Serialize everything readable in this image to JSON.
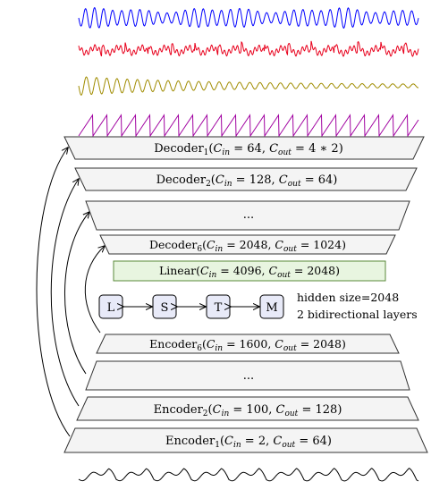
{
  "waves": {
    "top": [
      {
        "name": "blue-signal",
        "color": "#0000ff"
      },
      {
        "name": "red-signal",
        "color": "#e8001c"
      },
      {
        "name": "olive-signal",
        "color": "#a08c00"
      },
      {
        "name": "purple-signal",
        "color": "#a000a0"
      }
    ],
    "bottom": {
      "name": "input-signal",
      "color": "#000000"
    }
  },
  "decoders": [
    {
      "base": "Decoder",
      "sub": "1",
      "cin": "64",
      "cout": "4 ∗ 2"
    },
    {
      "base": "Decoder",
      "sub": "2",
      "cin": "128",
      "cout": "64"
    },
    {
      "base": "Decoder",
      "sub": "6",
      "cin": "2048",
      "cout": "1024"
    }
  ],
  "ellipsis": "...",
  "linear": {
    "base": "Linear",
    "cin": "4096",
    "cout": "2048",
    "fill": "#e8f5e0",
    "stroke": "#5a8a3a"
  },
  "lstm_nodes": [
    {
      "label": "L"
    },
    {
      "label": "S"
    },
    {
      "label": "T"
    },
    {
      "label": "M"
    }
  ],
  "lstm_note": [
    "hidden size=2048",
    "2 bidirectional layers"
  ],
  "encoders": [
    {
      "base": "Encoder",
      "sub": "6",
      "cin": "1600",
      "cout": "2048"
    },
    {
      "base": "Encoder",
      "sub": "2",
      "cin": "100",
      "cout": "128"
    },
    {
      "base": "Encoder",
      "sub": "1",
      "cin": "2",
      "cout": "64"
    }
  ],
  "colors": {
    "block_fill": "#f4f4f4",
    "block_stroke": "#333333",
    "node_fill": "#e8eaf8"
  }
}
